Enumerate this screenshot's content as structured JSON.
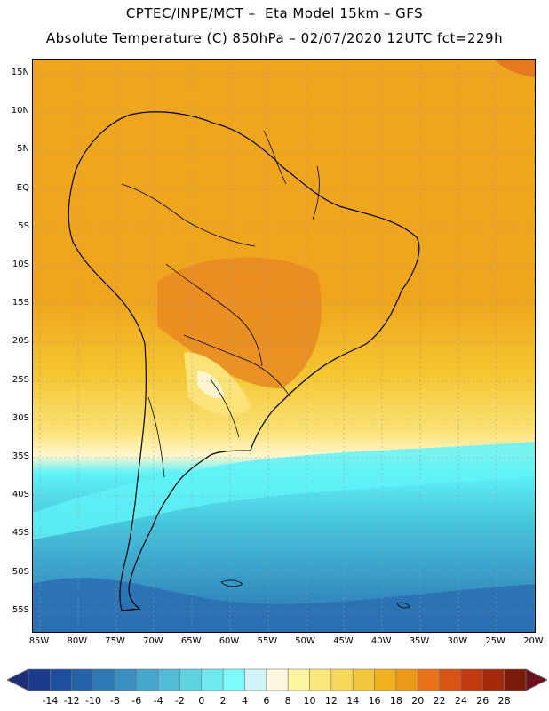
{
  "title": {
    "line1": "CPTEC/INPE/MCT –  Eta Model 15km – GFS",
    "line2": "Absolute Temperature (C) 850hPa – 02/07/2020 12UTC fct=229h"
  },
  "lat_labels": [
    "15N",
    "10N",
    "5N",
    "EQ",
    "5S",
    "10S",
    "15S",
    "20S",
    "25S",
    "30S",
    "35S",
    "40S",
    "45S",
    "50S",
    "55S"
  ],
  "lon_labels": [
    "85W",
    "80W",
    "75W",
    "70W",
    "65W",
    "60W",
    "55W",
    "50W",
    "45W",
    "40W",
    "35W",
    "30W",
    "25W",
    "20W"
  ],
  "colorbar": {
    "labels": [
      "-14",
      "-12",
      "-10",
      "-8",
      "-6",
      "-4",
      "-2",
      "0",
      "2",
      "4",
      "6",
      "8",
      "10",
      "12",
      "14",
      "16",
      "18",
      "20",
      "22",
      "24",
      "26",
      "28"
    ],
    "colors": [
      "#1b3c8c",
      "#1e4f9c",
      "#2563a8",
      "#2f79b4",
      "#3b8fc0",
      "#47a6cc",
      "#52bcd6",
      "#5fd3e2",
      "#6fe8ee",
      "#7ffafa",
      "#d0f4fa",
      "#fff6e0",
      "#fff4a0",
      "#fce87a",
      "#f8d85a",
      "#f4c63c",
      "#f1b11e",
      "#ee981a",
      "#e8731a",
      "#d95414",
      "#c23a10",
      "#a32a0c",
      "#7c1a0a"
    ],
    "left_arrow_color": "#1b2e7a",
    "right_arrow_color": "#6e0f1c"
  },
  "colors": {
    "warm": "#efa51d",
    "hot": "#e98c22",
    "land_hot": "#e4791f",
    "mild": "#f5c631",
    "cool_yellow": "#fbe37a",
    "pale": "#fff6cf",
    "cyan": "#5ff2f7",
    "teal": "#48c9de",
    "blue": "#3a9cc8",
    "deep": "#2a6fb2"
  }
}
